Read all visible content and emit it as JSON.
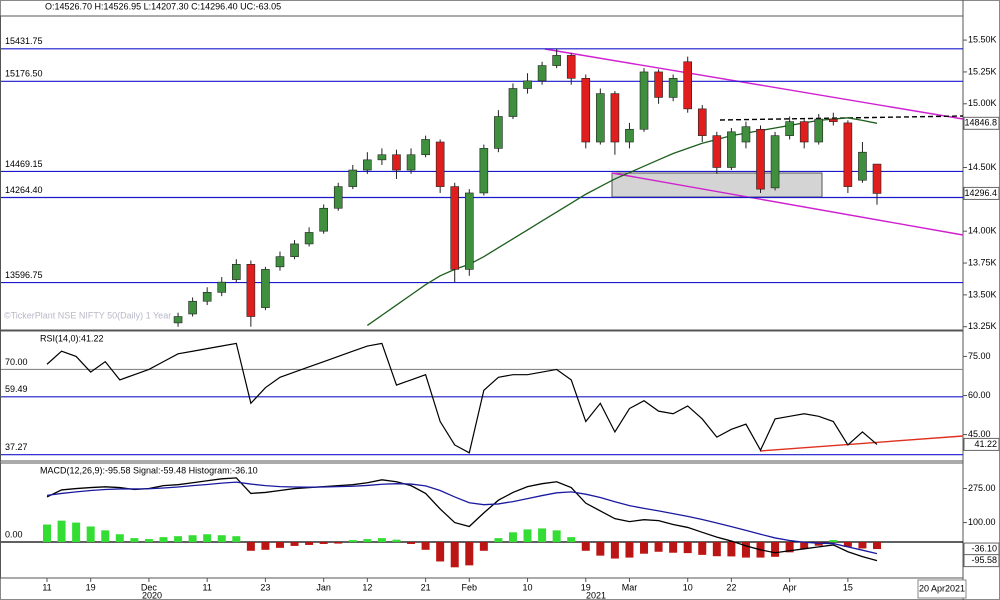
{
  "chart_data": [
    {
      "type": "candlestick",
      "title": "O:14526.70 H:14526.95 L:14207.30 C:14296.40 UC:-63.05",
      "annotation": "©TickerPlant NSE NIFTY 50(Daily) 1 Year",
      "year_labels": [
        "2020",
        "2021"
      ],
      "last_date": "20 Apr2021",
      "categories": [
        "11",
        null,
        null,
        "19",
        null,
        null,
        null,
        "Dec",
        null,
        null,
        null,
        "11",
        null,
        null,
        null,
        "23",
        null,
        null,
        null,
        "Jan",
        null,
        null,
        "12",
        null,
        null,
        null,
        "21",
        null,
        null,
        "Feb",
        null,
        null,
        null,
        "10",
        null,
        null,
        null,
        "19",
        null,
        null,
        "Mar",
        null,
        null,
        null,
        "10",
        null,
        null,
        "22",
        null,
        null,
        null,
        "Apr",
        null,
        null,
        null,
        "15",
        null,
        null
      ],
      "open": [
        null,
        null,
        null,
        null,
        null,
        null,
        null,
        null,
        null,
        13280,
        13350,
        13450,
        13520,
        13620,
        13740,
        13400,
        13720,
        13800,
        13900,
        14000,
        14180,
        14350,
        14480,
        14560,
        14600,
        14480,
        14600,
        14700,
        14350,
        13700,
        14300,
        14650,
        14900,
        15120,
        15180,
        15300,
        15380,
        15200,
        14700,
        15080,
        14700,
        14800,
        15250,
        15050,
        15330,
        14960,
        14750,
        14500,
        14700,
        14800,
        14340,
        14750,
        14860,
        14700,
        14880,
        14850,
        14400,
        14526.7
      ],
      "high": [
        null,
        null,
        null,
        null,
        null,
        null,
        null,
        null,
        null,
        13360,
        13480,
        13560,
        13640,
        13780,
        13770,
        13720,
        13840,
        13930,
        14030,
        14210,
        14380,
        14520,
        14620,
        14650,
        14640,
        14650,
        14750,
        14720,
        14380,
        14330,
        14680,
        14950,
        15160,
        15240,
        15330,
        15432,
        15400,
        15230,
        15120,
        15100,
        14850,
        15280,
        15270,
        15230,
        15370,
        14990,
        14780,
        14810,
        14860,
        14830,
        14780,
        14900,
        14880,
        14920,
        14930,
        14870,
        14700,
        14526.95
      ],
      "low": [
        null,
        null,
        null,
        null,
        null,
        null,
        null,
        null,
        null,
        13250,
        13330,
        13420,
        13490,
        13600,
        13250,
        13380,
        13690,
        13780,
        13880,
        13980,
        14160,
        14330,
        14450,
        14520,
        14410,
        14450,
        14580,
        14300,
        13600,
        13650,
        14280,
        14620,
        14880,
        15080,
        15150,
        15280,
        15150,
        14650,
        14680,
        14600,
        14650,
        14780,
        15000,
        15020,
        14930,
        14700,
        14450,
        14480,
        14650,
        14300,
        14320,
        14720,
        14650,
        14680,
        14830,
        14300,
        14380,
        14207.3
      ],
      "close": [
        null,
        null,
        null,
        null,
        null,
        null,
        null,
        null,
        null,
        13330,
        13450,
        13520,
        13600,
        13740,
        13330,
        13700,
        13800,
        13900,
        13990,
        14180,
        14350,
        14480,
        14560,
        14600,
        14480,
        14600,
        14720,
        14350,
        13700,
        14300,
        14650,
        14900,
        15120,
        15180,
        15300,
        15380,
        15200,
        14700,
        15080,
        14700,
        14800,
        15250,
        15050,
        15200,
        14960,
        14750,
        14500,
        14780,
        14820,
        14330,
        14750,
        14860,
        14700,
        14880,
        14860,
        14350,
        14620,
        14296.4
      ],
      "up_color": "#3f8f3f",
      "down_color": "#e01e1e",
      "ma_values": [
        null,
        null,
        null,
        null,
        null,
        null,
        null,
        null,
        null,
        null,
        null,
        null,
        null,
        null,
        null,
        null,
        null,
        null,
        null,
        null,
        null,
        null,
        13260,
        13340,
        13420,
        13500,
        13580,
        13650,
        13700,
        13740,
        13800,
        13870,
        13940,
        14010,
        14080,
        14150,
        14220,
        14290,
        14350,
        14410,
        14460,
        14510,
        14560,
        14610,
        14650,
        14690,
        14720,
        14750,
        14770,
        14790,
        14810,
        14830,
        14850,
        14870,
        14880,
        14890,
        14870,
        14846.8
      ],
      "ma_color": "#1d5e1d",
      "ylim": [
        13240,
        15540
      ],
      "yticks": [
        {
          "value": 15500,
          "label": "15.50K"
        },
        {
          "value": 15250,
          "label": "15.25K"
        },
        {
          "value": 15000,
          "label": "15.00K"
        },
        {
          "value": 14500,
          "label": "14.50K"
        },
        {
          "value": 14000,
          "label": "14.00K"
        },
        {
          "value": 13750,
          "label": "13.75K"
        },
        {
          "value": 13500,
          "label": "13.50K"
        },
        {
          "value": 13250,
          "label": "13.25K"
        }
      ],
      "levels": [
        15431.75,
        {
          "value": 15176.5,
          "label": "15176.50"
        },
        14469.15,
        {
          "value": 14264.4,
          "label": "14264.40"
        },
        13596.75
      ],
      "level_colors": [
        "#1a1acc",
        "#1a1acc",
        "#1a1acc",
        "#1a1acc",
        "#1a1acc"
      ],
      "tags": [
        14846.8,
        14296.4
      ]
    },
    {
      "type": "line",
      "title": "RSI(14,0):41.22",
      "values": [
        72,
        77,
        75,
        69,
        73,
        66,
        68,
        70,
        73,
        76,
        77,
        78,
        79,
        80,
        57,
        63,
        67,
        69,
        71,
        73,
        75,
        77,
        79,
        80,
        64,
        66,
        68,
        50,
        41,
        38,
        62,
        67,
        68,
        68,
        69,
        70,
        66,
        50,
        57,
        46,
        55,
        58,
        54,
        53,
        56,
        51,
        44,
        47,
        49,
        39,
        51,
        52,
        53,
        52,
        50,
        41,
        46,
        41.22
      ],
      "color": "#000000",
      "ylim": [
        36,
        84
      ],
      "yticks": [
        {
          "value": 75,
          "label": "75.00"
        },
        {
          "value": 60,
          "label": "60.00"
        },
        {
          "value": 45,
          "label": "45.00"
        }
      ],
      "levels": [
        {
          "value": 70,
          "label": "70.00"
        },
        59.49,
        37.27
      ],
      "level_colors": [
        "#888888",
        "#1a1acc",
        "#1a1acc"
      ],
      "tags": [
        41.22
      ]
    },
    {
      "type": "macd",
      "title": "MACD(12,26,9):-95.58 Signal:-59.48 Histogram:-36.10",
      "series": [
        {
          "color": "#000000",
          "values": [
            232,
            268,
            275,
            280,
            284,
            280,
            270,
            275,
            290,
            295,
            305,
            315,
            325,
            330,
            250,
            255,
            265,
            275,
            280,
            285,
            290,
            295,
            305,
            320,
            310,
            290,
            250,
            170,
            100,
            80,
            150,
            215,
            255,
            285,
            300,
            310,
            280,
            200,
            160,
            120,
            105,
            115,
            110,
            90,
            75,
            50,
            25,
            5,
            -20,
            -40,
            -55,
            -45,
            -35,
            -25,
            -15,
            -50,
            -75,
            -95.58
          ]
        },
        {
          "color": "#1a1aa0",
          "values": [
            240,
            250,
            258,
            265,
            270,
            273,
            273,
            274,
            278,
            283,
            290,
            296,
            303,
            308,
            298,
            290,
            285,
            283,
            282,
            283,
            285,
            287,
            291,
            297,
            300,
            298,
            289,
            265,
            232,
            202,
            192,
            196,
            208,
            223,
            239,
            253,
            258,
            246,
            229,
            207,
            187,
            173,
            160,
            146,
            132,
            116,
            98,
            79,
            60,
            40,
            21,
            8,
            -1,
            -6,
            -8,
            -25,
            -42,
            -59.48
          ]
        }
      ],
      "histogram": [
        90,
        110,
        100,
        80,
        60,
        40,
        20,
        15,
        25,
        30,
        35,
        40,
        35,
        30,
        -45,
        -40,
        -30,
        -20,
        -15,
        -10,
        -8,
        10,
        15,
        20,
        12,
        -10,
        -40,
        -100,
        -130,
        -120,
        -45,
        20,
        50,
        65,
        70,
        60,
        25,
        -45,
        -70,
        -85,
        -80,
        -60,
        -50,
        -55,
        -57,
        -66,
        -73,
        -74,
        -80,
        -80,
        -76,
        -53,
        -34,
        -19,
        10,
        -25,
        -33,
        -36.1
      ],
      "hist_colors": [
        "#33dd33",
        "#bb1515"
      ],
      "ylim": [
        -185,
        391
      ],
      "yticks": [
        {
          "value": 275,
          "label": "275.00"
        },
        {
          "value": 100,
          "label": "100.00"
        }
      ],
      "levels": [
        {
          "value": 0,
          "label": "0.00"
        }
      ],
      "level_colors": [
        "#000000"
      ],
      "tags": [
        {
          "value": -36.1,
          "label": "-36.10"
        },
        -95.58
      ]
    }
  ]
}
